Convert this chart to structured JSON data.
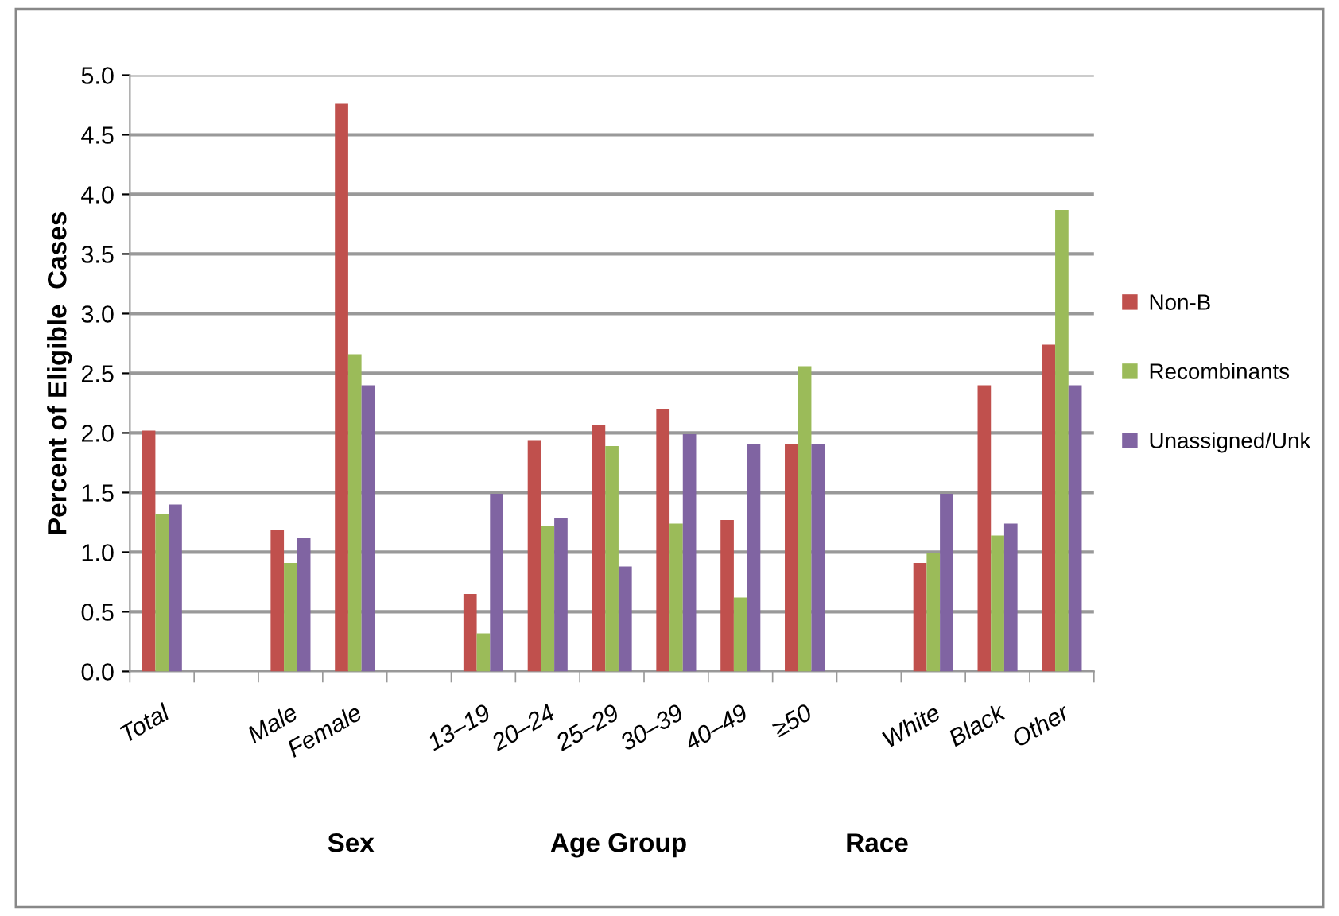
{
  "chart_data": {
    "type": "bar",
    "ylabel": "Percent of Eligible  Cases",
    "categories": [
      "Total",
      null,
      "Male",
      "Female",
      null,
      "13–19",
      "20–24",
      "25–29",
      "30–39",
      "40–49",
      "≥50",
      null,
      "White",
      "Black",
      "Other"
    ],
    "series": [
      {
        "name": "Non-B",
        "color": "#c0504d",
        "values": [
          2.02,
          null,
          1.19,
          4.76,
          null,
          0.65,
          1.94,
          2.07,
          2.2,
          1.27,
          1.91,
          null,
          0.91,
          2.4,
          2.74
        ]
      },
      {
        "name": "Recombinants",
        "color": "#9bbb59",
        "values": [
          1.32,
          null,
          0.91,
          2.66,
          null,
          0.32,
          1.22,
          1.89,
          1.24,
          0.62,
          2.56,
          null,
          0.99,
          1.14,
          3.87
        ]
      },
      {
        "name": "Unassigned/Unk",
        "color": "#8064a2",
        "values": [
          1.4,
          null,
          1.12,
          2.4,
          null,
          1.49,
          1.29,
          0.88,
          1.99,
          1.91,
          1.91,
          null,
          1.49,
          1.24,
          2.4
        ]
      }
    ],
    "ylim": [
      0,
      5
    ],
    "yticks": [
      {
        "value": 0,
        "label": "0.0"
      },
      {
        "value": 0.5,
        "label": "0.5"
      },
      {
        "value": 1,
        "label": "1.0"
      },
      {
        "value": 1.5,
        "label": "1.5"
      },
      {
        "value": 2,
        "label": "2.0"
      },
      {
        "value": 2.5,
        "label": "2.5"
      },
      {
        "value": 3,
        "label": "3.0"
      },
      {
        "value": 3.5,
        "label": "3.5"
      },
      {
        "value": 4,
        "label": "4.0"
      },
      {
        "value": 4.5,
        "label": "4.5"
      },
      {
        "value": 5,
        "label": "5.0"
      }
    ],
    "grid": "y",
    "legend": "right",
    "annotations": [
      "Sex",
      "Age Group",
      "Race"
    ]
  }
}
